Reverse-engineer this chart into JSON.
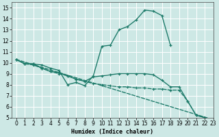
{
  "xlabel": "Humidex (Indice chaleur)",
  "ylabel": "",
  "background_color": "#cde8e5",
  "grid_color": "#ffffff",
  "line_color": "#1e7b6a",
  "xlim": [
    -0.5,
    23
  ],
  "ylim": [
    5,
    15.5
  ],
  "xticks": [
    0,
    1,
    2,
    3,
    4,
    5,
    6,
    7,
    8,
    9,
    10,
    11,
    12,
    13,
    14,
    15,
    16,
    17,
    18,
    19,
    20,
    21,
    22,
    23
  ],
  "yticks": [
    5,
    6,
    7,
    8,
    9,
    10,
    11,
    12,
    13,
    14,
    15
  ],
  "series": [
    {
      "x": [
        0,
        1,
        2,
        3,
        4,
        5,
        6,
        7,
        8,
        9,
        10,
        11,
        12,
        13,
        14,
        15,
        16,
        17,
        18
      ],
      "y": [
        10.3,
        9.9,
        9.9,
        9.8,
        9.5,
        9.3,
        8.0,
        8.2,
        7.9,
        8.8,
        11.5,
        11.6,
        13.0,
        13.3,
        13.9,
        14.8,
        14.7,
        14.3,
        11.6
      ],
      "linestyle": "-",
      "marker": true
    },
    {
      "x": [
        0,
        23
      ],
      "y": [
        10.3,
        4.8
      ],
      "linestyle": "--",
      "marker": false
    },
    {
      "x": [
        0,
        1,
        2,
        3,
        4,
        5,
        6,
        7,
        8,
        9,
        10,
        11,
        12,
        13,
        14,
        15,
        16,
        17,
        18,
        19,
        20,
        21,
        22,
        23
      ],
      "y": [
        10.3,
        9.9,
        9.9,
        9.5,
        9.2,
        9.1,
        8.8,
        8.5,
        8.3,
        8.7,
        8.8,
        8.9,
        9.0,
        9.0,
        9.0,
        9.0,
        8.9,
        8.4,
        7.8,
        7.8,
        6.5,
        5.2,
        5.0,
        4.8
      ],
      "linestyle": "-",
      "marker": true
    },
    {
      "x": [
        0,
        1,
        2,
        3,
        4,
        5,
        6,
        7,
        8,
        9,
        10,
        11,
        12,
        13,
        14,
        15,
        16,
        17,
        18,
        19,
        20,
        21,
        22,
        23
      ],
      "y": [
        10.3,
        9.9,
        9.8,
        9.5,
        9.2,
        9.0,
        8.8,
        8.5,
        8.3,
        8.1,
        8.0,
        7.9,
        7.8,
        7.8,
        7.7,
        7.7,
        7.6,
        7.6,
        7.5,
        7.5,
        6.5,
        5.2,
        5.0,
        4.8
      ],
      "linestyle": "--",
      "marker": true
    }
  ]
}
